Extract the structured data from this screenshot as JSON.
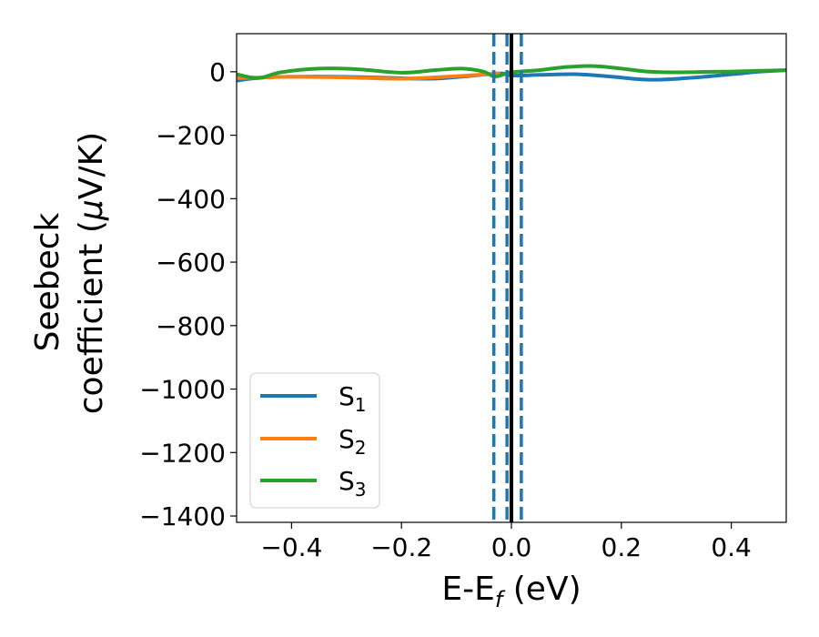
{
  "chart_data": {
    "type": "line",
    "xlabel": {
      "main": "E-E",
      "sub": "f",
      "tail": " (eV)"
    },
    "ylabel": {
      "line1": "Seebeck",
      "line2a": "coefficient  (",
      "line2mu": "μ",
      "line2b": "V/K)"
    },
    "xlim": [
      -0.5,
      0.5
    ],
    "ylim": [
      -1420,
      120
    ],
    "xticks": [
      -0.4,
      -0.2,
      0.0,
      0.2,
      0.4
    ],
    "xtick_labels": [
      "−0.4",
      "−0.2",
      "0.0",
      "0.2",
      "0.4"
    ],
    "yticks": [
      0,
      -200,
      -400,
      -600,
      -800,
      -1000,
      -1200,
      -1400
    ],
    "ytick_labels": [
      "0",
      "−200",
      "−400",
      "−600",
      "−800",
      "−1000",
      "−1200",
      "−1400"
    ],
    "legend_position": "lower-left",
    "series": [
      {
        "name": "S",
        "sub": "1",
        "color": "#1f77b4",
        "x": [
          -0.5,
          -0.45,
          -0.35,
          -0.25,
          -0.15,
          -0.08,
          -0.02,
          0.0,
          0.05,
          0.12,
          0.18,
          0.25,
          0.32,
          0.4,
          0.45,
          0.5
        ],
        "y": [
          -28,
          -18,
          -15,
          -18,
          -22,
          -14,
          -5,
          -12,
          -10,
          -8,
          -15,
          -25,
          -20,
          -8,
          0,
          5
        ]
      },
      {
        "name": "S",
        "sub": "2",
        "color": "#ff7f0e",
        "x": [
          -0.5,
          -0.45,
          -0.4,
          -0.3,
          -0.2,
          -0.12,
          -0.06,
          -0.02
        ],
        "y": [
          -20,
          -18,
          -16,
          -18,
          -22,
          -16,
          -10,
          -5
        ]
      },
      {
        "name": "S",
        "sub": "3",
        "color": "#2ca02c",
        "x": [
          -0.5,
          -0.46,
          -0.42,
          -0.35,
          -0.28,
          -0.2,
          -0.14,
          -0.09,
          -0.05,
          -0.03,
          0.0,
          0.05,
          0.1,
          0.15,
          0.2,
          0.25,
          0.3,
          0.38,
          0.45,
          0.5
        ],
        "y": [
          -8,
          -20,
          -2,
          10,
          8,
          -3,
          5,
          10,
          0,
          -15,
          -2,
          5,
          15,
          18,
          10,
          0,
          -2,
          0,
          3,
          5
        ]
      }
    ],
    "vlines": [
      {
        "x": -0.032,
        "color": "#1f77b4",
        "style": "dashed"
      },
      {
        "x": -0.008,
        "color": "#1f77b4",
        "style": "dashed"
      },
      {
        "x": 0.018,
        "color": "#1f77b4",
        "style": "dashed"
      },
      {
        "x": 0.0,
        "color": "#000000",
        "style": "solid"
      }
    ]
  }
}
